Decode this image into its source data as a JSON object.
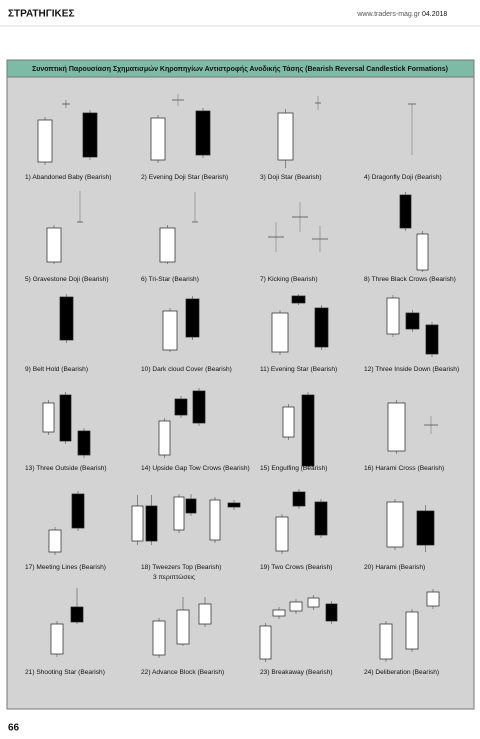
{
  "header": {
    "section": "ΣΤΡΑΤΗΓΙΚΕΣ",
    "site": "www.traders-mag.gr",
    "issue": "04.2018"
  },
  "panel": {
    "title": "Συνοπτική Παρουσίαση Σχηματισμών Κηροπηγίων Αντιστροφής Ανοδικής Τάσης (Bearish Reversal Candlestick Formations)",
    "captions": [
      "1) Abandoned Baby (Bearish)",
      "2) Evening Doji Star (Bearish)",
      "3) Doji Star (Bearish)",
      "4) Dragonfly Doji (Bearish)",
      "5) Gravestone Doji (Bearish)",
      "6) Tri-Star (Bearish)",
      "7) Kicking (Bearish)",
      "8) Three Black Crows (Bearish)",
      "9) Belt Hold (Bearish)",
      "10) Dark cloud Cover (Bearish)",
      "11) Evening Star (Bearish)",
      "12) Three Inside Down (Bearish)",
      "13) Three Outside (Bearish)",
      "14) Upside Gap Tow Crows (Bearish)",
      "15) Engulfing (Bearish)",
      "16) Harami Cross (Bearish)",
      "17) Meeting Lines (Bearish)",
      "18) Tweezers Top (Bearish)",
      "19) Two Crows (Bearish)",
      "20) Harami (Bearish)",
      "21) Shooting Star (Bearish)",
      "22) Advance Block (Bearish)",
      "23) Breakaway (Bearish)",
      "24) Deliberation (Bearish)"
    ],
    "note": "3 περιπτώσεις"
  },
  "page_number": "66"
}
